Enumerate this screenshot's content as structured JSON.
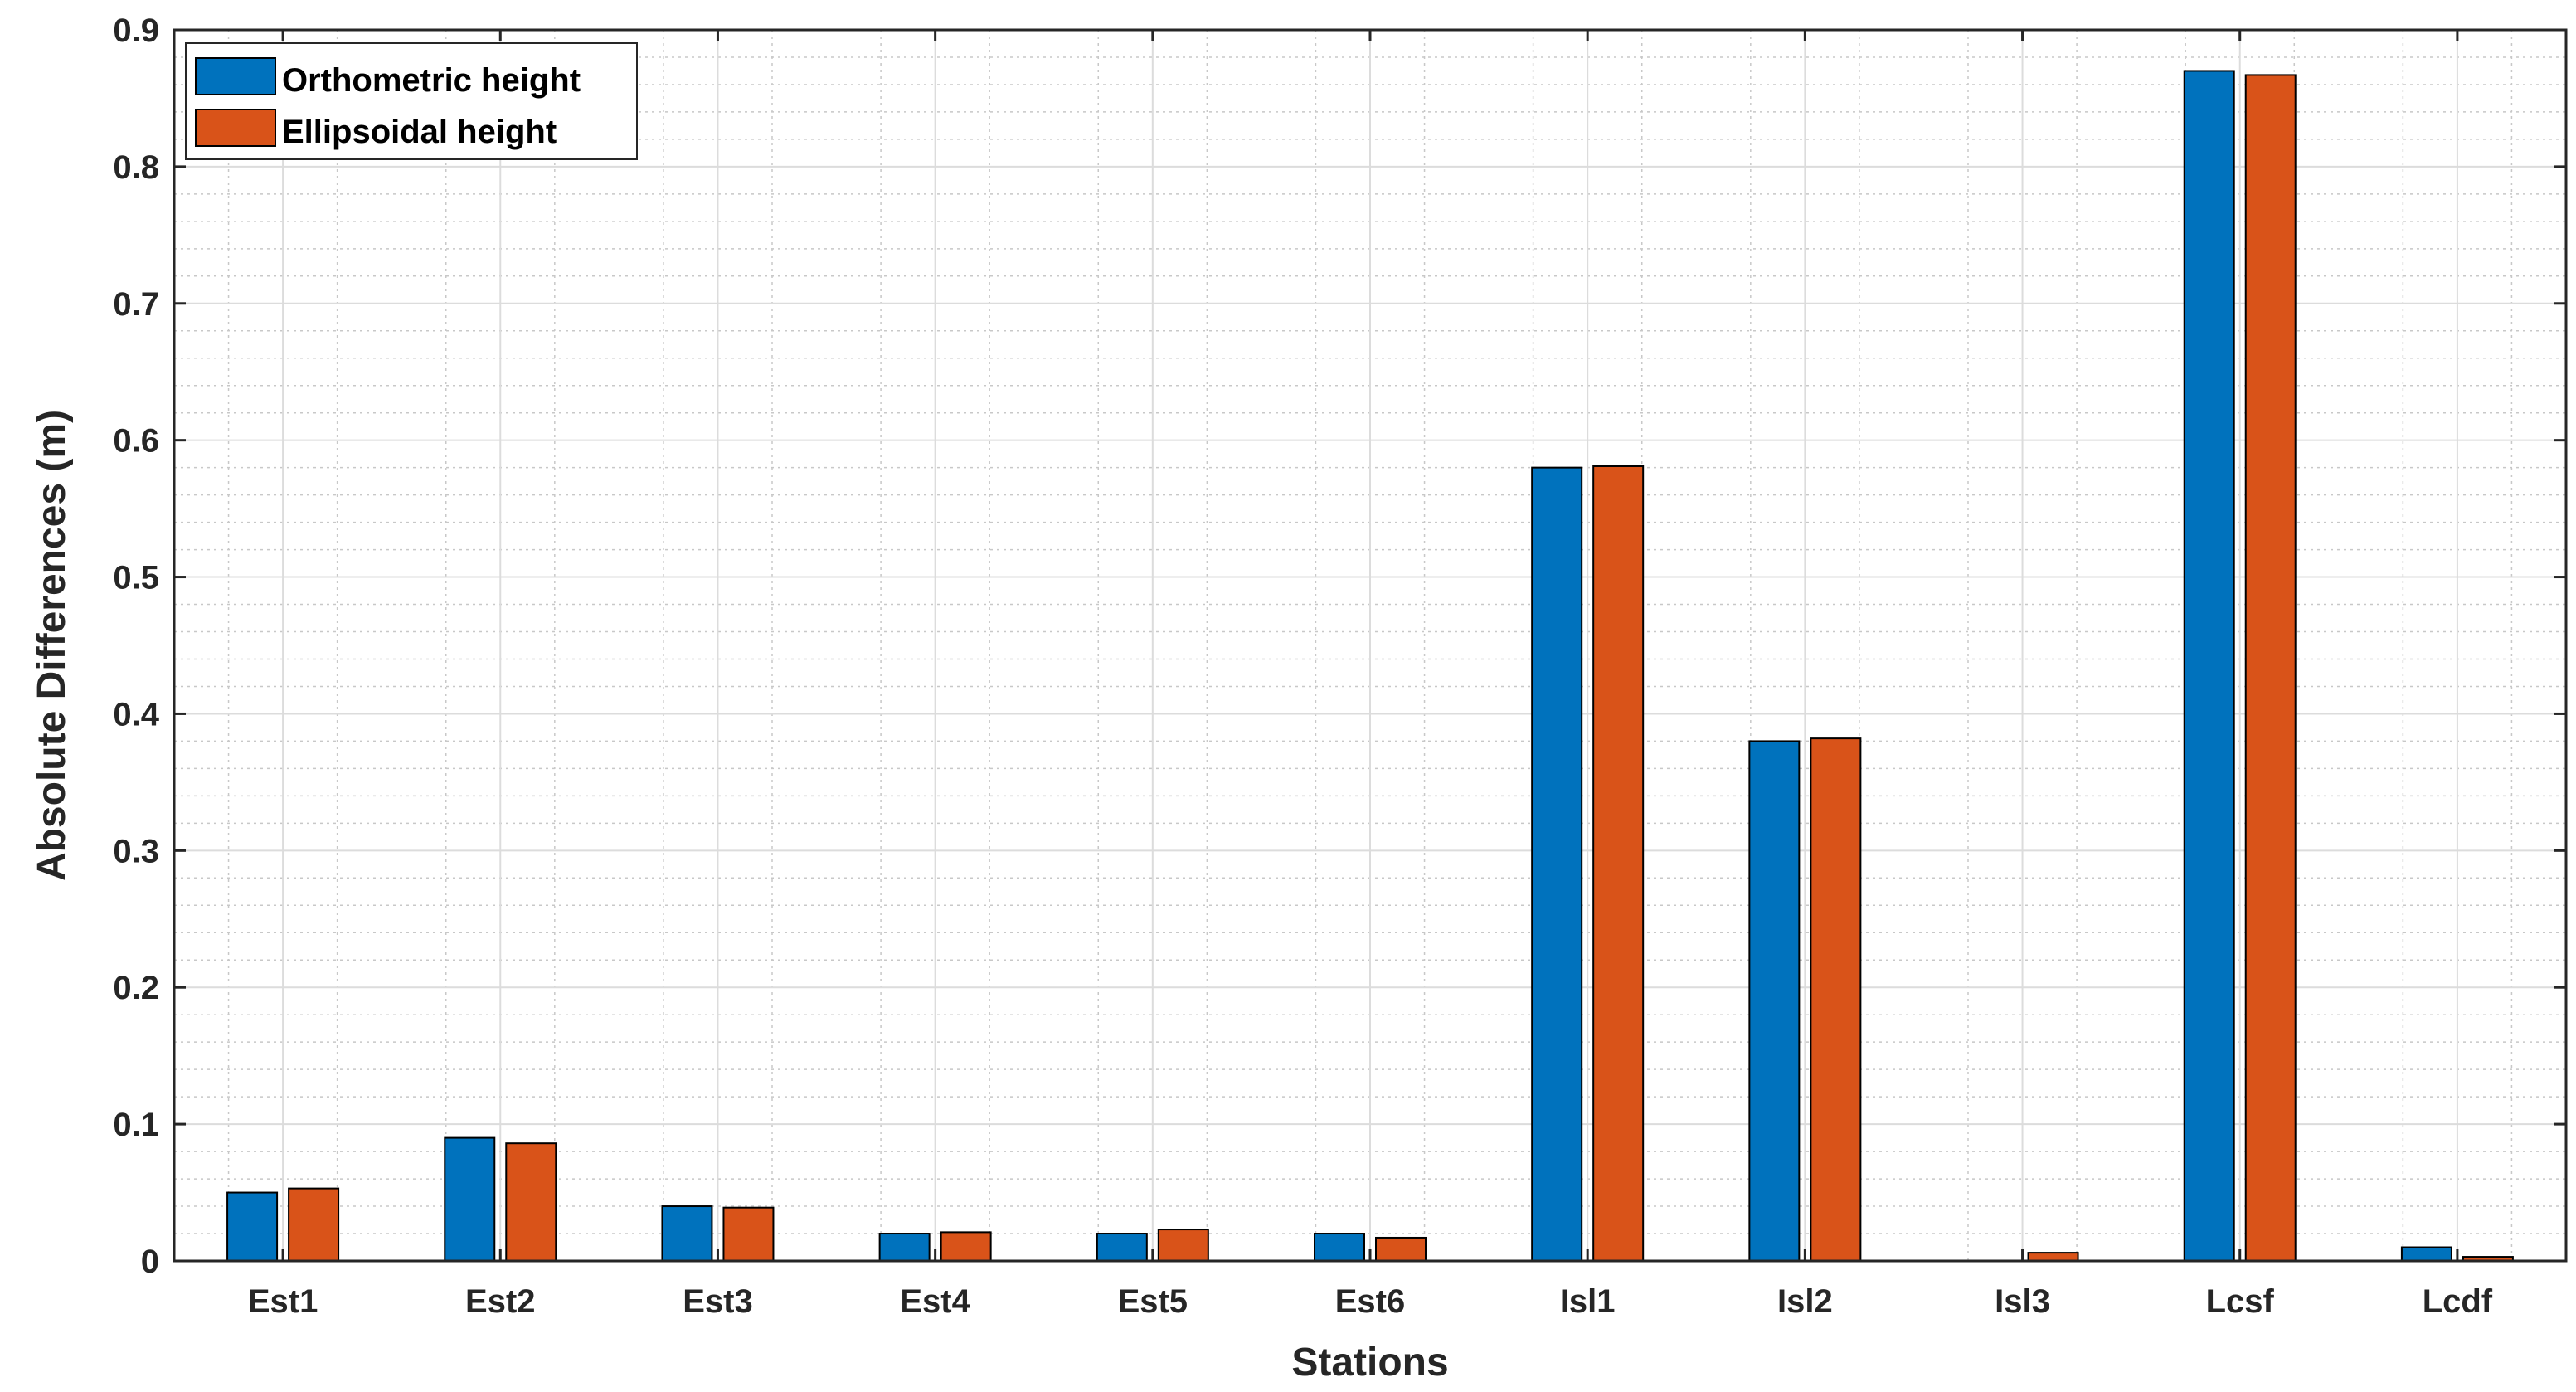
{
  "chart_data": {
    "type": "bar",
    "categories": [
      "Est1",
      "Est2",
      "Est3",
      "Est4",
      "Est5",
      "Est6",
      "Isl1",
      "Isl2",
      "Isl3",
      "Lcsf",
      "Lcdf"
    ],
    "series": [
      {
        "name": "Orthometric height",
        "color": "#0072BD",
        "values": [
          0.05,
          0.09,
          0.04,
          0.02,
          0.02,
          0.02,
          0.58,
          0.38,
          0.0,
          0.87,
          0.01
        ]
      },
      {
        "name": "Ellipsoidal height",
        "color": "#D95319",
        "values": [
          0.053,
          0.086,
          0.039,
          0.021,
          0.023,
          0.017,
          0.581,
          0.382,
          0.006,
          0.867,
          0.003
        ]
      }
    ],
    "title": "",
    "xlabel": "Stations",
    "ylabel": "Absolute Differences (m)",
    "ylim": [
      0,
      0.9
    ],
    "yticks": [
      "0",
      "0.1",
      "0.2",
      "0.3",
      "0.4",
      "0.5",
      "0.6",
      "0.7",
      "0.8",
      "0.9"
    ],
    "grid": true,
    "minor_grid": true,
    "legend_position": "top-left"
  }
}
